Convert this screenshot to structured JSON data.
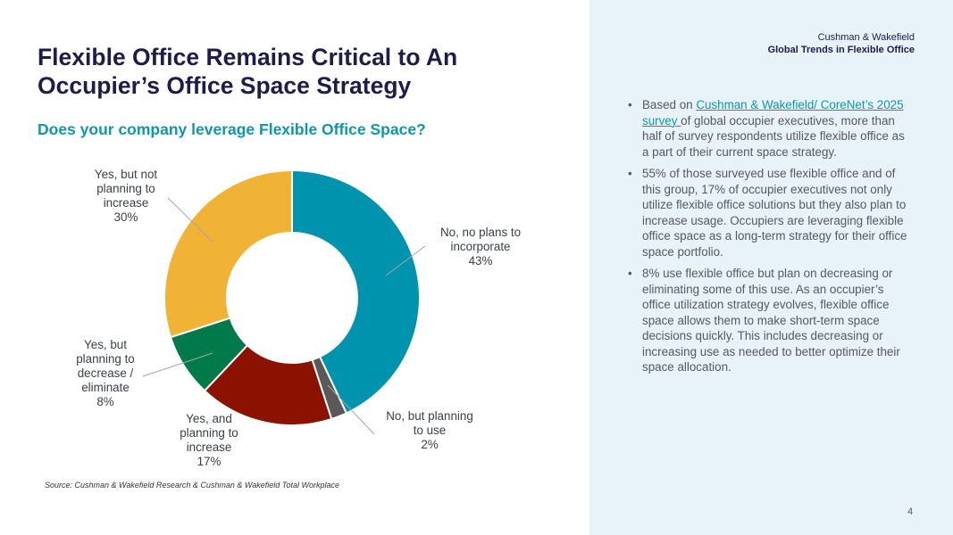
{
  "slide": {
    "title": "Flexible Office Remains Critical to An Occupier’s Office Space Strategy",
    "subtitle": "Does your company leverage Flexible Office Space?",
    "source": "Source: Cushman & Wakefield Research & Cushman & Wakefield Total Workplace",
    "page_number": "4"
  },
  "brand": {
    "company": "Cushman & Wakefield",
    "report": "Global Trends in Flexible Office"
  },
  "bullets": {
    "b1_pre": "Based on ",
    "b1_link": "Cushman & Wakefield/ CoreNet’s 2025 survey ",
    "b1_post": "of global occupier executives, more than half of survey respondents utilize flexible office as a part of their current space strategy.",
    "b2": "55% of those surveyed use flexible office and of this group, 17% of occupier executives not only utilize flexible office solutions but they also plan to increase usage. Occupiers are leveraging flexible office space as a long-term strategy for their office space portfolio.",
    "b3": "8% use flexible office but plan on decreasing or eliminating some of this use. As an occupier’s office utilization strategy evolves, flexible office space allows them to make short-term space decisions quickly. This includes decreasing or increasing use as needed to better optimize their space allocation."
  },
  "colors": {
    "title": "#1e1c4b",
    "accent": "#0e97ac",
    "panel": "#e7f3f9"
  },
  "chart_data": {
    "type": "pie",
    "donut": true,
    "title": "Does your company leverage Flexible Office Space?",
    "unit": "%",
    "slices": [
      {
        "label": [
          "No, no plans to",
          "incorporate"
        ],
        "value": 43,
        "value_label": "43%",
        "color": "#0093ad"
      },
      {
        "label": [
          "No, but planning",
          "to use"
        ],
        "value": 2,
        "value_label": "2%",
        "color": "#595959"
      },
      {
        "label": [
          "Yes, and",
          "planning to",
          "increase"
        ],
        "value": 17,
        "value_label": "17%",
        "color": "#8c1200"
      },
      {
        "label": [
          "Yes, but",
          "planning to",
          "decrease /",
          "eliminate"
        ],
        "value": 8,
        "value_label": "8%",
        "color": "#007a4a"
      },
      {
        "label": [
          "Yes, but not",
          "planning to",
          "increase"
        ],
        "value": 30,
        "value_label": "30%",
        "color": "#f0b336"
      }
    ]
  }
}
